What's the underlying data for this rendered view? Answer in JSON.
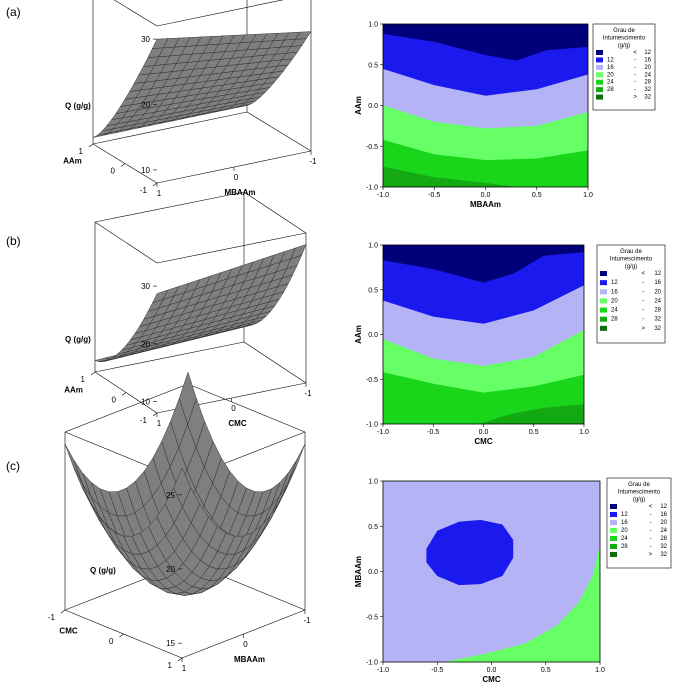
{
  "chart_data": [
    {
      "type": "surface",
      "panel": "(a)",
      "zlabel": "Q (g/g)",
      "xlabel": "AAm",
      "ylabel": "MBAAm",
      "ztick_labels": [
        "10",
        "20",
        "30"
      ],
      "xtick_labels": [
        "-1",
        "0",
        "1"
      ],
      "ytick_labels": [
        "1",
        "0",
        "-1"
      ],
      "zlim": [
        8,
        32
      ]
    },
    {
      "type": "contour",
      "panel": "(a)",
      "xlabel": "MBAAm",
      "ylabel": "AAm",
      "xlim": [
        -1,
        1
      ],
      "ylim": [
        -1,
        1
      ],
      "xtick_labels": [
        "-1.0",
        "-0.5",
        "0.0",
        "0.5",
        "1.0"
      ],
      "ytick_labels": [
        "-1.0",
        "-0.5",
        "0.0",
        "0.5",
        "1.0"
      ],
      "boundaries": [
        {
          "between": "<12 | 12-16",
          "x": [
            -1,
            -0.5,
            0,
            0.3,
            0.6,
            1
          ],
          "y": [
            0.88,
            0.78,
            0.62,
            0.55,
            0.68,
            0.72
          ]
        },
        {
          "between": "12-16 | 16-20",
          "x": [
            -1,
            -0.5,
            0,
            0.5,
            1
          ],
          "y": [
            0.45,
            0.25,
            0.12,
            0.2,
            0.38
          ]
        },
        {
          "between": "16-20 | 20-24",
          "x": [
            -1,
            -0.5,
            0,
            0.5,
            1
          ],
          "y": [
            0.0,
            -0.2,
            -0.28,
            -0.25,
            -0.08
          ]
        },
        {
          "between": "20-24 | 24-28",
          "x": [
            -1,
            -0.5,
            0,
            0.5,
            1
          ],
          "y": [
            -0.42,
            -0.6,
            -0.67,
            -0.65,
            -0.55
          ]
        },
        {
          "between": "24-28 | 28-32",
          "x": [
            -1,
            -0.5,
            0,
            0.3,
            0.5,
            1
          ],
          "y": [
            -0.75,
            -0.88,
            -0.95,
            -1.0,
            -1.0,
            -1.0
          ]
        }
      ],
      "legend": {
        "title_lines": [
          "Grau de",
          "Intumescimento",
          "(g/g)"
        ],
        "entries": [
          {
            "low": "",
            "sep": "<",
            "high": "12",
            "color": "#00007a"
          },
          {
            "low": "12",
            "sep": "-",
            "high": "16",
            "color": "#1a1aee"
          },
          {
            "low": "16",
            "sep": "-",
            "high": "20",
            "color": "#b3b3f5"
          },
          {
            "low": "20",
            "sep": "-",
            "high": "24",
            "color": "#66ff66"
          },
          {
            "low": "24",
            "sep": "-",
            "high": "28",
            "color": "#1ad61a"
          },
          {
            "low": "28",
            "sep": "-",
            "high": "32",
            "color": "#13a913"
          },
          {
            "low": "",
            "sep": ">",
            "high": "32",
            "color": "#0a6e0a"
          }
        ]
      }
    },
    {
      "type": "surface",
      "panel": "(b)",
      "zlabel": "Q (g/g)",
      "xlabel": "AAm",
      "ylabel": "CMC",
      "ztick_labels": [
        "10",
        "20",
        "30"
      ],
      "xtick_labels": [
        "-1",
        "0",
        "1"
      ],
      "ytick_labels": [
        "1",
        "0",
        "-1"
      ],
      "zlim": [
        8,
        34
      ]
    },
    {
      "type": "contour",
      "panel": "(b)",
      "xlabel": "CMC",
      "ylabel": "AAm",
      "xlim": [
        -1,
        1
      ],
      "ylim": [
        -1,
        1
      ],
      "xtick_labels": [
        "-1.0",
        "-0.5",
        "0.0",
        "0.5",
        "1.0"
      ],
      "ytick_labels": [
        "-1.0",
        "-0.5",
        "0.0",
        "0.5",
        "1.0"
      ],
      "boundaries": [
        {
          "between": "<12 | 12-16",
          "x": [
            -1,
            -0.5,
            0,
            0.3,
            0.6,
            1
          ],
          "y": [
            0.83,
            0.73,
            0.58,
            0.68,
            0.88,
            0.92
          ]
        },
        {
          "between": "12-16 | 16-20",
          "x": [
            -1,
            -0.5,
            0,
            0.5,
            1
          ],
          "y": [
            0.38,
            0.2,
            0.12,
            0.27,
            0.55
          ]
        },
        {
          "between": "16-20 | 20-24",
          "x": [
            -1,
            -0.5,
            0,
            0.5,
            1
          ],
          "y": [
            -0.05,
            -0.27,
            -0.35,
            -0.25,
            0.05
          ]
        },
        {
          "between": "20-24 | 24-28",
          "x": [
            -1,
            -0.5,
            0,
            0.5,
            1
          ],
          "y": [
            -0.42,
            -0.55,
            -0.65,
            -0.58,
            -0.45
          ]
        },
        {
          "between": "24-28 | 28-32",
          "x": [
            -0.05,
            0.3,
            0.6,
            1
          ],
          "y": [
            -1.0,
            -0.88,
            -0.82,
            -0.78
          ]
        }
      ],
      "legend": {
        "title_lines": [
          "Grau de",
          "Intumescimento",
          "(g/g)"
        ],
        "entries": [
          {
            "low": "",
            "sep": "<",
            "high": "12",
            "color": "#00007a"
          },
          {
            "low": "12",
            "sep": "-",
            "high": "16",
            "color": "#1a1aee"
          },
          {
            "low": "16",
            "sep": "-",
            "high": "20",
            "color": "#b3b3f5"
          },
          {
            "low": "20",
            "sep": "-",
            "high": "24",
            "color": "#66ff66"
          },
          {
            "low": "24",
            "sep": "-",
            "high": "28",
            "color": "#1ad61a"
          },
          {
            "low": "28",
            "sep": "-",
            "high": "32",
            "color": "#13a913"
          },
          {
            "low": "",
            "sep": ">",
            "high": "32",
            "color": "#0a6e0a"
          }
        ]
      }
    },
    {
      "type": "surface",
      "panel": "(c)",
      "zlabel": "Q (g/g)",
      "xlabel": "CMC",
      "ylabel": "MBAAm",
      "ztick_labels": [
        "15",
        "20",
        "25"
      ],
      "xtick_labels": [
        "1",
        "0",
        "-1"
      ],
      "ytick_labels": [
        "1",
        "0",
        "-1"
      ],
      "zlim": [
        14,
        26
      ]
    },
    {
      "type": "contour",
      "panel": "(c)",
      "xlabel": "CMC",
      "ylabel": "MBAAm",
      "xlim": [
        -1,
        1
      ],
      "ylim": [
        -1,
        1
      ],
      "xtick_labels": [
        "-1.0",
        "-0.5",
        "0.0",
        "0.5",
        "1.0"
      ],
      "ytick_labels": [
        "-1.0",
        "-0.5",
        "0.0",
        "0.5",
        "1.0"
      ],
      "regions": [
        {
          "range": "16-20",
          "kind": "background"
        },
        {
          "range": "12-16",
          "kind": "island",
          "x": [
            -0.6,
            -0.5,
            -0.3,
            -0.1,
            0.1,
            0.2,
            0.2,
            0.1,
            -0.1,
            -0.3,
            -0.5,
            -0.6
          ],
          "y": [
            0.25,
            0.45,
            0.55,
            0.57,
            0.52,
            0.35,
            0.15,
            -0.05,
            -0.14,
            -0.15,
            -0.05,
            0.1
          ]
        },
        {
          "range": "20-24",
          "kind": "corner",
          "x": [
            -0.45,
            -0.1,
            0.3,
            0.6,
            0.8,
            0.93,
            1.0,
            1.0,
            -0.45
          ],
          "y": [
            -1.0,
            -0.92,
            -0.8,
            -0.6,
            -0.35,
            -0.05,
            0.3,
            -1.0,
            -1.0
          ]
        }
      ],
      "legend": {
        "title_lines": [
          "Grau de",
          "Intumescimento",
          "(g/g)"
        ],
        "entries": [
          {
            "low": "",
            "sep": "<",
            "high": "12",
            "color": "#00007a"
          },
          {
            "low": "12",
            "sep": "-",
            "high": "16",
            "color": "#1a1aee"
          },
          {
            "low": "16",
            "sep": "-",
            "high": "20",
            "color": "#b3b3f5"
          },
          {
            "low": "20",
            "sep": "-",
            "high": "24",
            "color": "#66ff66"
          },
          {
            "low": "24",
            "sep": "-",
            "high": "28",
            "color": "#1ad61a"
          },
          {
            "low": "28",
            "sep": "-",
            "high": "32",
            "color": "#13a913"
          },
          {
            "low": "",
            "sep": ">",
            "high": "32",
            "color": "#0a6e0a"
          }
        ]
      }
    }
  ],
  "panel_labels": [
    "(a)",
    "(b)",
    "(c)"
  ]
}
